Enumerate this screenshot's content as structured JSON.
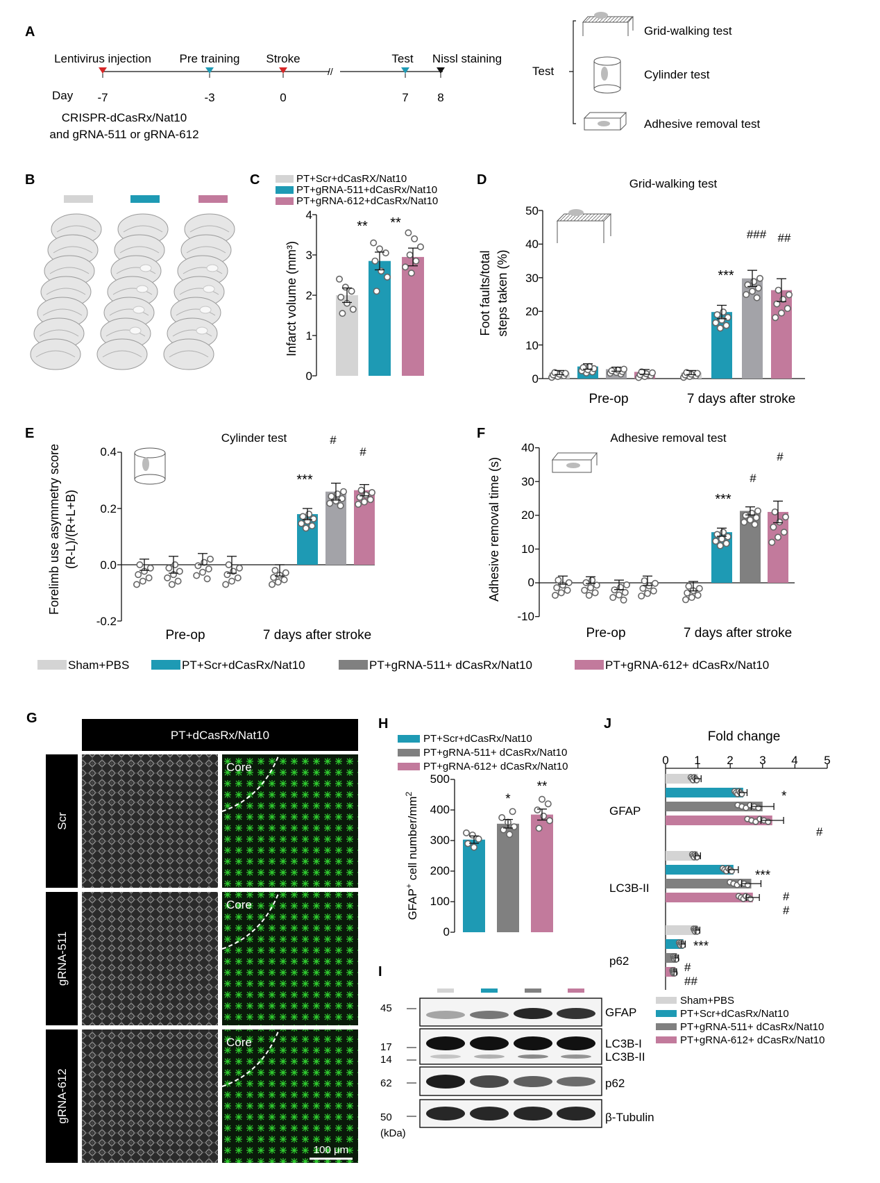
{
  "colors": {
    "sham": "#d4d4d4",
    "scr": "#1e9ab4",
    "g511": "#a3a3a8",
    "g612": "#c27a9c",
    "g511_dark": "#808080",
    "g612_h": "#c37b9d",
    "dot": "#666666"
  },
  "panels": {
    "A": {
      "letter": "A",
      "events": [
        "Lentivirus injection",
        "Pre training",
        "Stroke",
        "Test",
        "Nissl staining"
      ],
      "day_label": "Day",
      "days": [
        "-7",
        "-3",
        "0",
        "7",
        "8"
      ],
      "treatment_line1": "CRISPR-dCasRx/Nat10",
      "treatment_line2": "and gRNA-511 or gRNA-612",
      "test_label": "Test",
      "tests": [
        "Grid-walking test",
        "Cylinder test",
        "Adhesive removal test"
      ]
    },
    "B": {
      "letter": "B"
    },
    "C": {
      "letter": "C",
      "legend": [
        "PT+Scr+dCasRX/Nat10",
        "PT+gRNA-511+dCasRx/Nat10",
        "PT+gRNA-612+dCasRx/Nat10"
      ],
      "ylabel": "Infarct volume (mm³)",
      "yticks": [
        "0",
        "1",
        "2",
        "3",
        "4"
      ],
      "sig": [
        "",
        "**",
        "**"
      ]
    },
    "D": {
      "letter": "D",
      "title": "Grid-walking test",
      "ylabel1": "Foot faults/total",
      "ylabel2": "steps taken (%)",
      "yticks": [
        "0",
        "10",
        "20",
        "30",
        "40",
        "50"
      ],
      "groups": [
        "Pre-op",
        "7 days after stroke"
      ],
      "sig": [
        "",
        "***",
        "###",
        "##"
      ]
    },
    "E": {
      "letter": "E",
      "title": "Cylinder test",
      "ylabel1": "Forelimb use asymmetry score",
      "ylabel2": "(R-L)/(R+L+B)",
      "yticks": [
        "-0.2",
        "0.0",
        "0.2",
        "0.4"
      ],
      "groups": [
        "Pre-op",
        "7 days after stroke"
      ],
      "sig": [
        "",
        "***",
        "#",
        "#"
      ]
    },
    "F": {
      "letter": "F",
      "title": "Adhesive removal test",
      "ylabel": "Adhesive removal time (s)",
      "yticks": [
        "-10",
        "0",
        "10",
        "20",
        "30",
        "40"
      ],
      "groups": [
        "Pre-op",
        "7 days after stroke"
      ],
      "sig": [
        "",
        "***",
        "#",
        "#"
      ]
    },
    "legend_EF": [
      "Sham+PBS",
      "PT+Scr+dCasRx/Nat10",
      "PT+gRNA-511+ dCasRx/Nat10",
      "PT+gRNA-612+ dCasRx/Nat10"
    ],
    "G": {
      "letter": "G",
      "header": "PT+dCasRx/Nat10",
      "rows": [
        "Scr",
        "gRNA-511",
        "gRNA-612"
      ],
      "core": "Core",
      "scale": "100 μm"
    },
    "H": {
      "letter": "H",
      "legend": [
        "PT+Scr+dCasRx/Nat10",
        "PT+gRNA-511+ dCasRx/Nat10",
        "PT+gRNA-612+ dCasRx/Nat10"
      ],
      "ylabel_pre": "GFAP",
      "ylabel_sup": "+",
      "ylabel_post": " cell number/mm",
      "ylabel_sup2": "2",
      "yticks": [
        "0",
        "100",
        "200",
        "300",
        "400",
        "500"
      ],
      "sig": [
        "",
        "*",
        "**"
      ]
    },
    "I": {
      "letter": "I",
      "markers": [
        "45",
        "17",
        "14",
        "62",
        "50"
      ],
      "kda": "(kDa)",
      "bands": [
        "GFAP",
        "LC3B-I",
        "LC3B-II",
        "p62",
        "β-Tubulin"
      ]
    },
    "J": {
      "letter": "J",
      "title": "Fold change",
      "xticks": [
        "0",
        "1",
        "2",
        "3",
        "4",
        "5"
      ],
      "groups": [
        "GFAP",
        "LC3B-II",
        "p62"
      ],
      "sig": [
        [
          "",
          "*",
          "",
          "#"
        ],
        [
          "",
          "***",
          "#",
          "#"
        ],
        [
          "",
          "***",
          "#",
          "##"
        ]
      ],
      "legend": [
        "Sham+PBS",
        "PT+Scr+dCasRx/Nat10",
        "PT+gRNA-511+ dCasRx/Nat10",
        "PT+gRNA-612+ dCasRx/Nat10"
      ]
    }
  },
  "chart_data": [
    {
      "panel": "C",
      "type": "bar",
      "categories": [
        "PT+Scr+dCasRX/Nat10",
        "PT+gRNA-511+dCasRx/Nat10",
        "PT+gRNA-612+dCasRx/Nat10"
      ],
      "values": [
        2.0,
        2.85,
        2.95
      ],
      "errors": [
        0.18,
        0.22,
        0.22
      ],
      "points": [
        [
          2.4,
          2.2,
          2.1,
          1.95,
          1.8,
          1.65,
          1.55
        ],
        [
          3.3,
          3.15,
          3.05,
          2.85,
          2.6,
          2.45,
          2.1
        ],
        [
          3.55,
          3.4,
          3.2,
          3.0,
          2.85,
          2.7,
          2.55
        ]
      ],
      "ylabel": "Infarct volume (mm³)",
      "ylim": [
        0,
        4
      ]
    },
    {
      "panel": "D",
      "type": "bar",
      "x": [
        "Pre-op",
        "7 days after stroke"
      ],
      "series": [
        {
          "name": "Sham+PBS",
          "values": [
            1.8,
            1.8
          ],
          "errors": [
            0.6,
            0.6
          ]
        },
        {
          "name": "PT+Scr+dCasRx/Nat10",
          "values": [
            3.6,
            19.8
          ],
          "errors": [
            0.8,
            2.0
          ]
        },
        {
          "name": "PT+gRNA-511+ dCasRx/Nat10",
          "values": [
            2.8,
            29.8
          ],
          "errors": [
            0.6,
            2.4
          ]
        },
        {
          "name": "PT+gRNA-612+ dCasRx/Nat10",
          "values": [
            2.0,
            26.3
          ],
          "errors": [
            0.7,
            3.4
          ]
        }
      ],
      "ylabel": "Foot faults/total steps taken (%)",
      "ylim": [
        0,
        50
      ]
    },
    {
      "panel": "E",
      "type": "bar",
      "x": [
        "Pre-op",
        "7 days after stroke"
      ],
      "series": [
        {
          "name": "Sham+PBS",
          "values": [
            0.0,
            -0.02
          ],
          "errors": [
            0.02,
            0.02
          ]
        },
        {
          "name": "PT+Scr+dCasRx/Nat10",
          "values": [
            0.0,
            0.18
          ],
          "errors": [
            0.03,
            0.02
          ]
        },
        {
          "name": "PT+gRNA-511+ dCasRx/Nat10",
          "values": [
            0.02,
            0.26
          ],
          "errors": [
            0.02,
            0.03
          ]
        },
        {
          "name": "PT+gRNA-612+ dCasRx/Nat10",
          "values": [
            0.0,
            0.265
          ],
          "errors": [
            0.03,
            0.02
          ]
        }
      ],
      "ylabel": "Forelimb use asymmetry score (R-L)/(R+L+B)",
      "ylim": [
        -0.2,
        0.4
      ]
    },
    {
      "panel": "F",
      "type": "bar",
      "x": [
        "Pre-op",
        "7 days after stroke"
      ],
      "series": [
        {
          "name": "Sham+PBS",
          "values": [
            0.8,
            -1.0
          ],
          "errors": [
            1.2,
            1.4
          ]
        },
        {
          "name": "PT+Scr+dCasRx/Nat10",
          "values": [
            0.8,
            15.0
          ],
          "errors": [
            1.0,
            1.2
          ]
        },
        {
          "name": "PT+gRNA-511+ dCasRx/Nat10",
          "values": [
            -0.6,
            21.3
          ],
          "errors": [
            1.4,
            1.2
          ]
        },
        {
          "name": "PT+gRNA-612+ dCasRx/Nat10",
          "values": [
            0.6,
            21.0
          ],
          "errors": [
            1.4,
            3.2
          ]
        }
      ],
      "ylabel": "Adhesive removal time (s)",
      "ylim": [
        -10,
        40
      ]
    },
    {
      "panel": "H",
      "type": "bar",
      "categories": [
        "PT+Scr+dCasRx/Nat10",
        "PT+gRNA-511+ dCasRx/Nat10",
        "PT+gRNA-612+ dCasRx/Nat10"
      ],
      "values": [
        303,
        355,
        385
      ],
      "errors": [
        12,
        14,
        18
      ],
      "points": [
        [
          325,
          318,
          305,
          290,
          278
        ],
        [
          395,
          375,
          360,
          345,
          335,
          320
        ],
        [
          435,
          420,
          400,
          380,
          365,
          340
        ]
      ],
      "ylim": [
        0,
        500
      ]
    },
    {
      "panel": "J",
      "type": "bar",
      "orientation": "horizontal",
      "categories": [
        "GFAP",
        "LC3B-II",
        "p62"
      ],
      "series": [
        {
          "name": "Sham+PBS",
          "values": [
            1.0,
            1.0,
            1.0
          ],
          "errors": [
            0.1,
            0.08,
            0.06
          ]
        },
        {
          "name": "PT+Scr+dCasRx/Nat10",
          "values": [
            2.4,
            2.1,
            0.55
          ],
          "errors": [
            0.12,
            0.15,
            0.06
          ]
        },
        {
          "name": "PT+gRNA-511+ dCasRx/Nat10",
          "values": [
            3.0,
            2.65,
            0.35
          ],
          "errors": [
            0.35,
            0.3,
            0.05
          ]
        },
        {
          "name": "PT+gRNA-612+ dCasRx/Nat10",
          "values": [
            3.3,
            2.7,
            0.3
          ],
          "errors": [
            0.35,
            0.2,
            0.04
          ]
        }
      ],
      "xlabel": "Fold change",
      "xlim": [
        0,
        5
      ]
    }
  ]
}
